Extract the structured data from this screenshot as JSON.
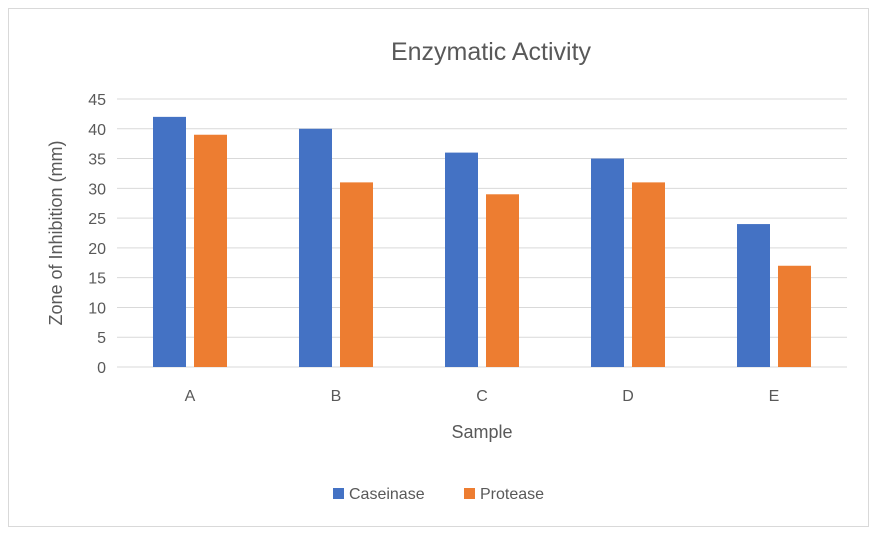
{
  "chart_data": {
    "type": "bar",
    "title": "Enzymatic Activity",
    "xlabel": "Sample",
    "ylabel": "Zone of Inhibition (mm)",
    "categories": [
      "A",
      "B",
      "C",
      "D",
      "E"
    ],
    "series": [
      {
        "name": "Caseinase",
        "values": [
          42,
          40,
          36,
          35,
          24
        ],
        "color": "#4472c4"
      },
      {
        "name": "Protease",
        "values": [
          39,
          31,
          29,
          31,
          17
        ],
        "color": "#ed7d31"
      }
    ],
    "ylim": [
      0,
      45
    ],
    "yticks": [
      0,
      5,
      10,
      15,
      20,
      25,
      30,
      35,
      40,
      45
    ],
    "grid": true,
    "legend_position": "bottom",
    "gridline_color": "#d9d9d9"
  }
}
